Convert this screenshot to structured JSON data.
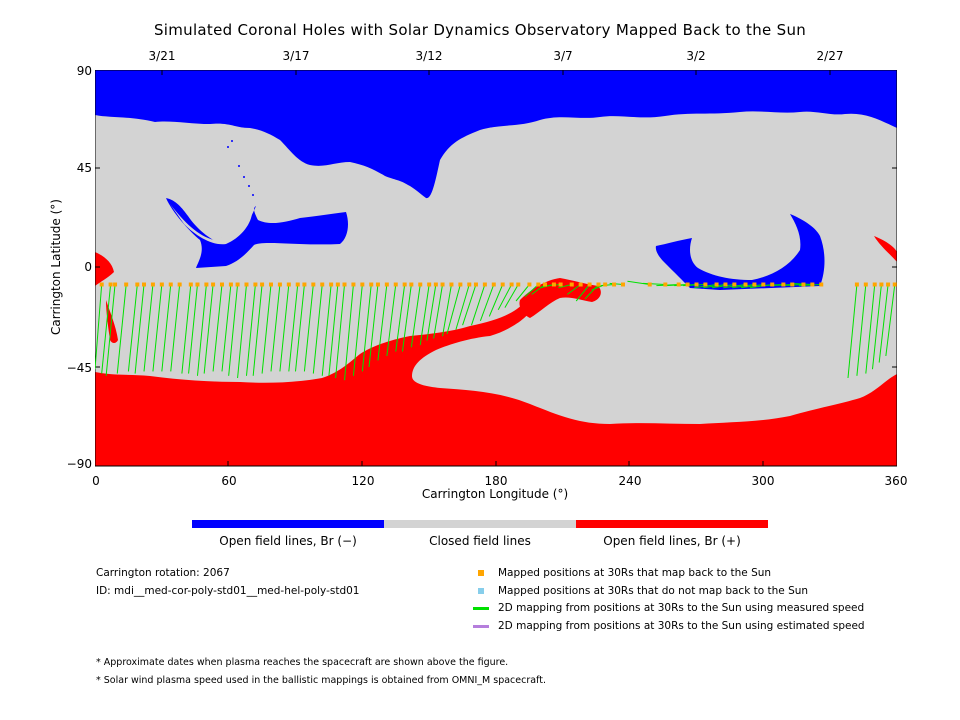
{
  "chart_data": {
    "type": "heatmap",
    "title": "Simulated Coronal Holes with Solar Dynamics Observatory Mapped Back to the Sun",
    "xlabel": "Carrington Longitude (°)",
    "ylabel": "Carrington Latitude (°)",
    "xlim": [
      0,
      360
    ],
    "ylim": [
      -90,
      90
    ],
    "x_ticks": [
      "0",
      "60",
      "120",
      "180",
      "240",
      "300",
      "360"
    ],
    "y_ticks": [
      "90",
      "45",
      "0",
      "−45",
      "−90"
    ],
    "top_date_axis": [
      {
        "label": "3/21",
        "longitude": 30
      },
      {
        "label": "3/17",
        "longitude": 90
      },
      {
        "label": "3/12",
        "longitude": 150
      },
      {
        "label": "3/7",
        "longitude": 210
      },
      {
        "label": "3/2",
        "longitude": 270
      },
      {
        "label": "2/27",
        "longitude": 330
      }
    ],
    "colorbar": [
      {
        "label": "Open field lines, Br (−)",
        "color": "#0000ff"
      },
      {
        "label": "Closed field lines",
        "color": "#d3d3d3"
      },
      {
        "label": "Open field lines, Br (+)",
        "color": "#ff0000"
      }
    ],
    "mapped_positions_30Rs_latitude": -7.5,
    "mapped_longitudes": [
      3,
      7,
      9,
      14,
      19,
      22,
      26,
      30,
      34,
      38,
      43,
      46,
      50,
      53,
      57,
      61,
      64,
      68,
      72,
      75,
      79,
      83,
      87,
      91,
      94,
      98,
      102,
      106,
      109,
      112,
      116,
      120,
      124,
      127,
      131,
      135,
      139,
      142,
      146,
      150,
      153,
      156,
      160,
      164,
      168,
      171,
      175,
      179,
      183,
      187,
      190,
      195,
      199,
      202,
      206,
      209,
      214,
      218,
      222,
      226,
      229,
      233,
      237,
      249,
      256,
      262,
      266,
      270,
      274,
      279,
      283,
      287,
      292,
      296,
      300,
      304,
      309,
      313,
      318,
      322,
      326,
      342,
      346,
      350,
      353,
      356,
      359
    ],
    "footpoint_latitudes": [
      -46,
      -48,
      -49,
      -48,
      -47,
      -48,
      -47,
      -47,
      -47,
      -47,
      -48,
      -48,
      -49,
      -48,
      -47,
      -47,
      -49,
      -50,
      -49,
      -49,
      -48,
      -47,
      -47,
      -47,
      -47,
      -47,
      -48,
      -49,
      -49,
      -50,
      -51,
      -49,
      -47,
      -45,
      -42,
      -40,
      -38,
      -38,
      -36,
      -35,
      -33,
      -32,
      -31,
      -30,
      -28,
      -26,
      -26,
      -24,
      -22,
      -19,
      -18,
      -15,
      -13,
      -12,
      -9,
      -8,
      -9,
      -12,
      -15,
      -14,
      -10,
      -8,
      -7,
      -6,
      -7,
      -8,
      -8,
      -8,
      -8,
      -9,
      -9,
      -9,
      -9,
      -9,
      -9,
      -9,
      -8,
      -8,
      -8,
      -7,
      -8,
      -50,
      -49,
      -48,
      -46,
      -43,
      -40
    ],
    "open_negative_regions": [
      {
        "name": "north polar coronal hole",
        "polarity": "Br (−)"
      },
      {
        "name": "mid-latitude hole near 30–110°",
        "polarity": "Br (−)"
      },
      {
        "name": "hole near 255–325°",
        "polarity": "Br (−)"
      }
    ],
    "open_positive_regions": [
      {
        "name": "south polar coronal hole",
        "polarity": "Br (+)"
      }
    ]
  },
  "colors": {
    "negative": "#0000ff",
    "closed": "#d3d3d3",
    "positive": "#ff0000",
    "mapped": "#ffa500",
    "unmapped": "#87ceeb",
    "measured_line": "#00e000",
    "estimated_line": "#b57edc"
  },
  "info": {
    "rotation": "Carrington rotation: 2067",
    "id": "ID: mdi__med-cor-poly-std01__med-hel-poly-std01"
  },
  "legend": {
    "mapped": "Mapped positions at 30Rs that map back to the Sun",
    "unmapped": "Mapped positions at 30Rs that do not map back to the Sun",
    "measured": "2D mapping from positions at 30Rs to the Sun using measured speed",
    "estimated": "2D mapping from positions at 30Rs to the Sun using estimated speed"
  },
  "notes": [
    "* Approximate dates when plasma reaches the spacecraft are shown above the figure.",
    "* Solar wind plasma speed used in the ballistic mappings is obtained from OMNI_M spacecraft."
  ]
}
